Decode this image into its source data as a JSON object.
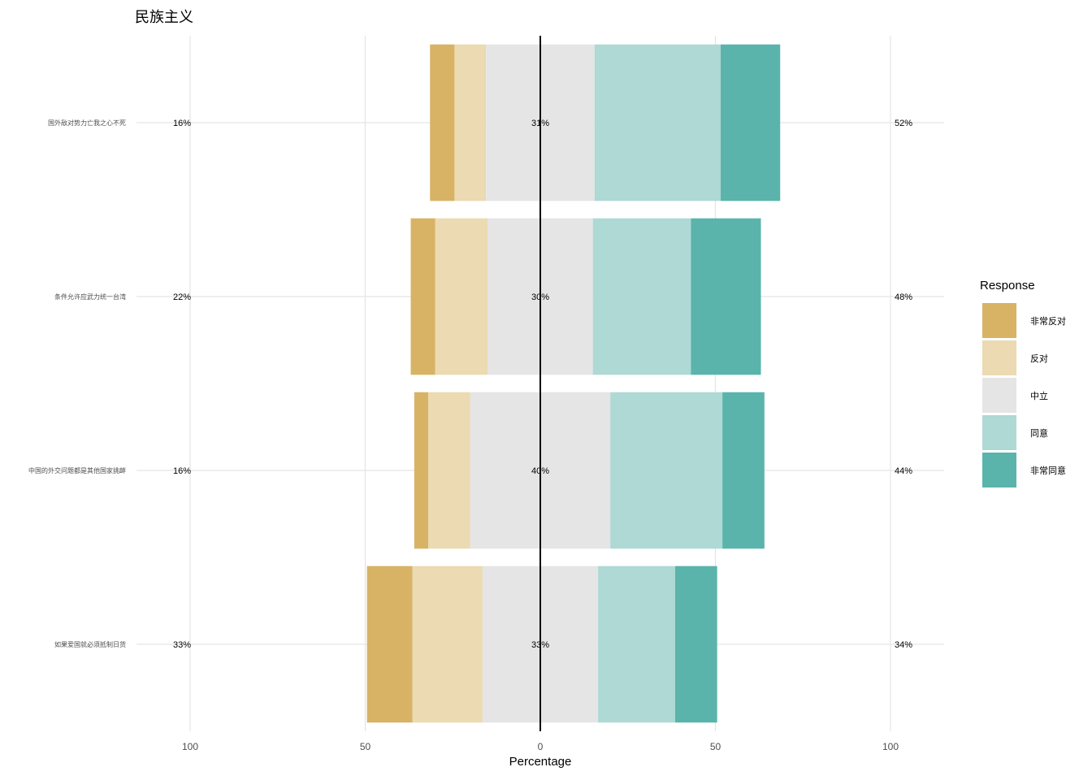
{
  "chart_data": {
    "type": "bar",
    "orientation": "horizontal-diverging",
    "title": "民族主义",
    "xlabel": "Percentage",
    "ylabel": "",
    "xlim": [
      -100,
      100
    ],
    "xticks": [
      -100,
      -50,
      0,
      50,
      100
    ],
    "xtick_labels": [
      "100",
      "50",
      "0",
      "50",
      "100"
    ],
    "grid": true,
    "legend": {
      "title": "Response",
      "position": "right"
    },
    "levels": [
      {
        "name": "非常反对",
        "color": "#D8B365"
      },
      {
        "name": "反对",
        "color": "#EBDAB2"
      },
      {
        "name": "中立",
        "color": "#E5E5E5"
      },
      {
        "name": "同意",
        "color": "#AED9D5"
      },
      {
        "name": "非常同意",
        "color": "#5AB4AC"
      }
    ],
    "items": [
      {
        "label": "国外敌对势力亡我之心不死",
        "values": [
          7,
          9,
          31,
          36,
          17
        ],
        "low": "16%",
        "neutral": "31%",
        "high": "52%"
      },
      {
        "label": "条件允许应武力统一台湾",
        "values": [
          7,
          15,
          30,
          28,
          20
        ],
        "low": "22%",
        "neutral": "30%",
        "high": "48%"
      },
      {
        "label": "中国的外交问题都是其他国家挑衅",
        "values": [
          4,
          12,
          40,
          32,
          12
        ],
        "low": "16%",
        "neutral": "40%",
        "high": "44%"
      },
      {
        "label": "如果爱国就必须抵制日货",
        "values": [
          13,
          20,
          33,
          22,
          12
        ],
        "low": "33%",
        "neutral": "33%",
        "high": "34%"
      }
    ]
  }
}
